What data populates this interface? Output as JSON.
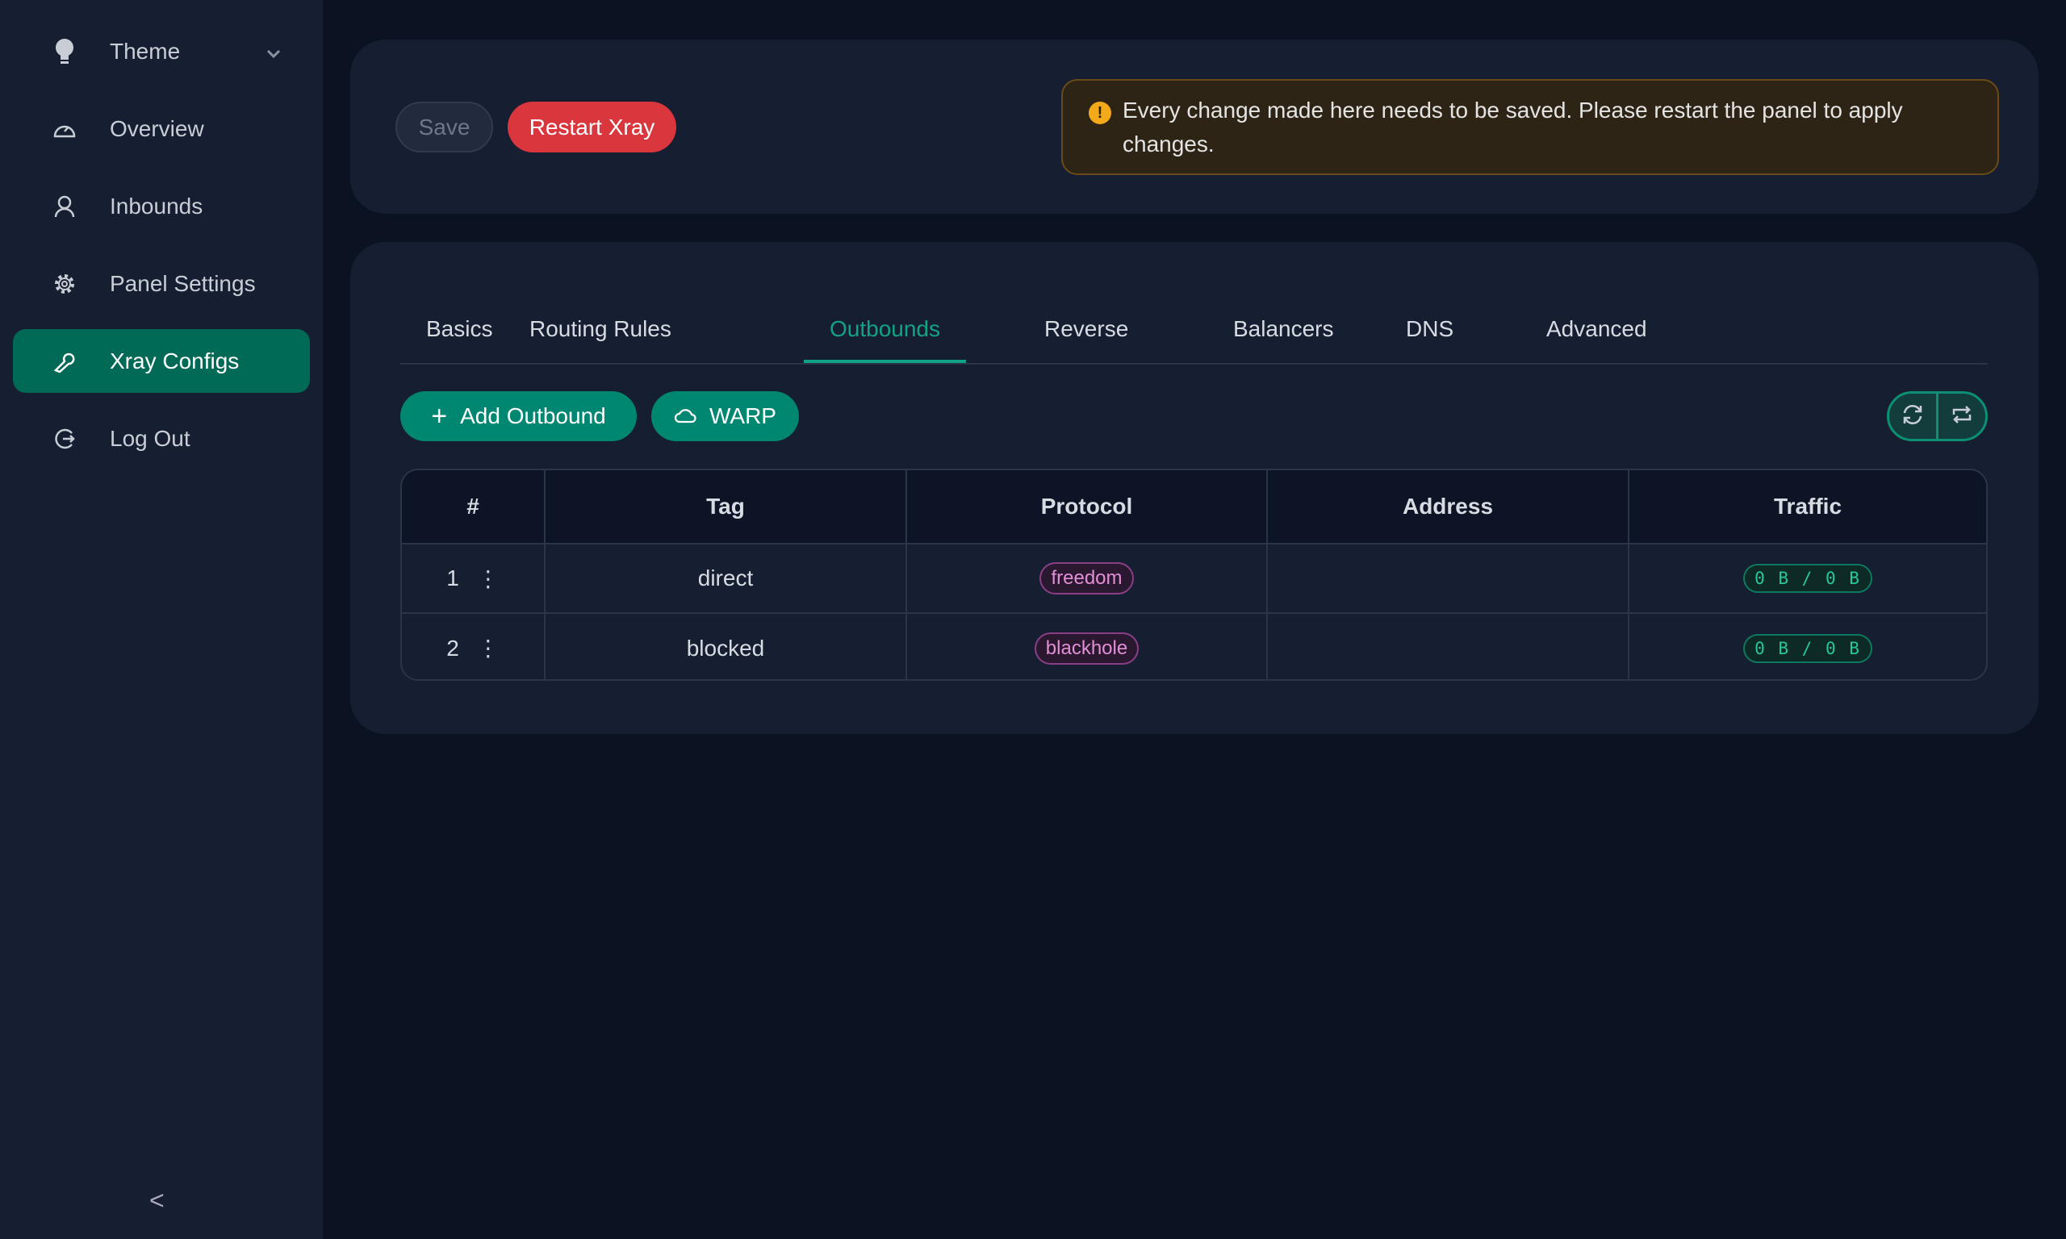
{
  "sidebar": {
    "items": [
      {
        "label": "Theme",
        "icon": "bulb-icon"
      },
      {
        "label": "Overview",
        "icon": "dashboard-icon"
      },
      {
        "label": "Inbounds",
        "icon": "user-icon"
      },
      {
        "label": "Panel Settings",
        "icon": "gear-icon"
      },
      {
        "label": "Xray Configs",
        "icon": "wrench-icon",
        "active": true
      },
      {
        "label": "Log Out",
        "icon": "logout-icon"
      }
    ],
    "collapse": "<"
  },
  "toolbar": {
    "save": "Save",
    "restart": "Restart Xray"
  },
  "alert": {
    "text": "Every change made here needs to be saved. Please restart the panel to apply changes."
  },
  "tabs": [
    "Basics",
    "Routing Rules",
    "Outbounds",
    "Reverse",
    "Balancers",
    "DNS",
    "Advanced"
  ],
  "active_tab": "Outbounds",
  "actions": {
    "add": "Add Outbound",
    "warp": "WARP"
  },
  "table": {
    "headers": [
      "#",
      "Tag",
      "Protocol",
      "Address",
      "Traffic"
    ],
    "rows": [
      {
        "num": "1",
        "tag": "direct",
        "protocol": "freedom",
        "address": "",
        "traffic": "0 B / 0 B"
      },
      {
        "num": "2",
        "tag": "blocked",
        "protocol": "blackhole",
        "address": "",
        "traffic": "0 B / 0 B"
      }
    ]
  },
  "colors": {
    "accent": "#008771",
    "danger": "#d9363e",
    "warning": "#f2a91a"
  }
}
